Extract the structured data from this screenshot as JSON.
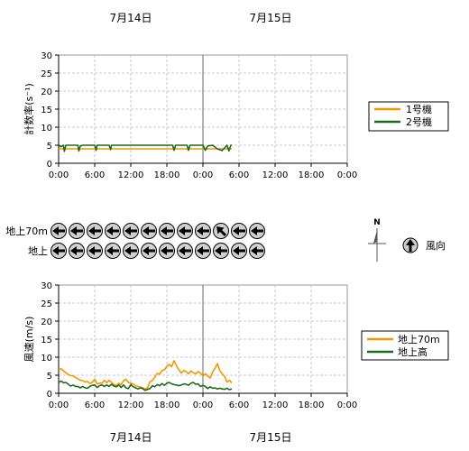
{
  "chart_data": [
    {
      "type": "line",
      "ylabel": "計数率(s⁻¹)",
      "ylim": [
        0,
        30
      ],
      "yticks": [
        "30",
        "25",
        "20",
        "15",
        "10",
        "5",
        "0"
      ],
      "x_hours": [
        0,
        60
      ],
      "xticks": [
        "0:00",
        "6:00",
        "12:00",
        "18:00",
        "0:00",
        "6:00",
        "12:00",
        "18:00",
        "0:00"
      ],
      "dates": [
        "7月14日",
        "7月15日"
      ],
      "grid": true,
      "legend_position": "right",
      "series": [
        {
          "name": "1号機",
          "color": "#f39800",
          "x": [
            0,
            0.5,
            1,
            2,
            3,
            4,
            5,
            6,
            7,
            8,
            9,
            10,
            11,
            12,
            13,
            14,
            15,
            16,
            17,
            18,
            19,
            20,
            21,
            22,
            23,
            24,
            25,
            26,
            27,
            28,
            29,
            30,
            31,
            32,
            33,
            34,
            35,
            36
          ],
          "y": [
            4.0,
            4.0,
            4.0,
            4.0,
            4.0,
            4.0,
            4.0,
            4.0,
            4.0,
            4.0,
            4.0,
            4.0,
            4.0,
            4.0,
            4.0,
            4.0,
            4.0,
            4.0,
            4.0,
            4.0,
            4.0,
            4.0,
            4.0,
            4.0,
            4.0,
            4.0,
            4.0,
            4.0,
            4.0,
            4.0,
            4.0,
            4.0,
            4.0,
            4.0,
            4.0,
            4.0,
            4.0,
            4.0
          ]
        },
        {
          "name": "2号機",
          "color": "#1e6b1e",
          "x": [
            0,
            0.5,
            1,
            1.2,
            1.5,
            2,
            4,
            4.2,
            4.5,
            5,
            7.5,
            7.8,
            8,
            9,
            10.5,
            10.8,
            11,
            12,
            15,
            16,
            18,
            20,
            22,
            23.7,
            24,
            24.3,
            25,
            26,
            26.7,
            27,
            27.3,
            28,
            29,
            30,
            30.5,
            31,
            32,
            33,
            34,
            35,
            35.4,
            35.8,
            36
          ],
          "y": [
            5.0,
            4.6,
            5.0,
            3.3,
            5.0,
            5.0,
            5.0,
            3.4,
            4.8,
            5.0,
            5.0,
            3.6,
            5.0,
            5.0,
            5.0,
            3.8,
            5.0,
            5.0,
            5.0,
            5.0,
            5.0,
            5.0,
            5.0,
            5.0,
            3.6,
            5.0,
            5.0,
            5.0,
            5.0,
            3.6,
            5.0,
            5.0,
            5.0,
            5.0,
            3.6,
            4.8,
            5.0,
            4.0,
            3.5,
            5.0,
            3.4,
            5.0,
            5.0
          ]
        }
      ]
    },
    {
      "type": "line",
      "ylabel": "風速(m/s)",
      "ylim": [
        0,
        30
      ],
      "yticks": [
        "30",
        "25",
        "20",
        "15",
        "10",
        "5",
        "0"
      ],
      "x_hours": [
        0,
        60
      ],
      "xticks": [
        "0:00",
        "6:00",
        "12:00",
        "18:00",
        "0:00",
        "6:00",
        "12:00",
        "18:00",
        "0:00"
      ],
      "dates": [
        "7月14日",
        "7月15日"
      ],
      "grid": true,
      "legend_position": "right",
      "series": [
        {
          "name": "地上70m",
          "color": "#f39800",
          "x": [
            0,
            0.5,
            1,
            1.5,
            2,
            2.5,
            3,
            3.5,
            4,
            4.5,
            5,
            5.5,
            6,
            6.5,
            7,
            7.5,
            8,
            8.5,
            9,
            9.5,
            10,
            10.5,
            11,
            11.5,
            12,
            12.5,
            13,
            13.5,
            14,
            14.5,
            15,
            15.5,
            16,
            16.5,
            17,
            17.5,
            18,
            18.5,
            19,
            19.5,
            20,
            20.5,
            21,
            21.5,
            22,
            22.5,
            23,
            23.5,
            24,
            24.5,
            25,
            25.5,
            26,
            26.5,
            27,
            27.5,
            28,
            28.5,
            29,
            29.5,
            30,
            30.5,
            31,
            31.5,
            32,
            32.5,
            33,
            33.5,
            34,
            34.5,
            35,
            35.5,
            36
          ],
          "y": [
            6.5,
            6.8,
            6.2,
            5.7,
            5.2,
            4.9,
            4.8,
            4.4,
            4.0,
            3.6,
            3.5,
            3.1,
            3.3,
            2.7,
            3.0,
            3.9,
            2.6,
            2.8,
            2.8,
            3.6,
            2.9,
            3.6,
            3.0,
            2.4,
            2.1,
            2.8,
            2.4,
            3.5,
            3.9,
            3.0,
            2.8,
            2.6,
            2.1,
            1.9,
            1.7,
            1.5,
            1.1,
            1.6,
            3.2,
            3.5,
            4.5,
            5.5,
            5.3,
            6.3,
            6.5,
            7.5,
            8.0,
            7.4,
            9.0,
            7.6,
            6.5,
            5.6,
            6.3,
            6.0,
            5.4,
            6.2,
            5.7,
            5.4,
            6.0,
            5.6,
            4.8,
            5.4,
            4.8,
            4.2,
            5.9,
            6.9,
            8.2,
            6.3,
            5.4,
            4.7,
            3.1,
            3.6,
            2.9
          ]
        },
        {
          "name": "地上高",
          "color": "#1e6b1e",
          "x": [
            0,
            0.5,
            1,
            1.5,
            2,
            2.5,
            3,
            3.5,
            4,
            4.5,
            5,
            5.5,
            6,
            6.5,
            7,
            7.5,
            8,
            8.5,
            9,
            9.5,
            10,
            10.5,
            11,
            11.5,
            12,
            12.5,
            13,
            13.5,
            14,
            14.5,
            15,
            15.5,
            16,
            16.5,
            17,
            17.5,
            18,
            18.5,
            19,
            19.5,
            20,
            20.5,
            21,
            21.5,
            22,
            22.5,
            23,
            23.5,
            24,
            24.5,
            25,
            25.5,
            26,
            26.5,
            27,
            27.5,
            28,
            28.5,
            29,
            29.5,
            30,
            30.5,
            31,
            31.5,
            32,
            32.5,
            33,
            33.5,
            34,
            34.5,
            35,
            35.5,
            36
          ],
          "y": [
            3.0,
            3.4,
            2.9,
            3.0,
            2.5,
            2.0,
            2.3,
            1.9,
            1.9,
            1.5,
            1.9,
            1.5,
            1.4,
            1.9,
            2.2,
            2.3,
            1.6,
            2.1,
            2.3,
            1.9,
            2.3,
            1.9,
            2.5,
            2.0,
            1.8,
            2.3,
            1.6,
            2.3,
            1.5,
            1.3,
            2.4,
            1.8,
            1.5,
            1.2,
            1.5,
            1.3,
            0.8,
            1.1,
            1.3,
            2.1,
            1.8,
            2.4,
            2.1,
            2.7,
            2.2,
            2.8,
            3.0,
            2.6,
            2.4,
            2.3,
            2.1,
            2.3,
            2.6,
            2.5,
            2.2,
            2.8,
            3.0,
            2.5,
            2.6,
            1.9,
            2.2,
            1.9,
            1.3,
            1.8,
            1.4,
            1.5,
            1.2,
            1.4,
            1.2,
            1.1,
            1.4,
            1.0,
            1.2
          ]
        }
      ]
    }
  ],
  "wind_direction": {
    "rows": [
      {
        "label": "地上70m",
        "degrees": [
          270,
          270,
          270,
          270,
          270,
          270,
          270,
          270,
          270,
          315,
          270,
          270
        ]
      },
      {
        "label": "地上",
        "degrees": [
          270,
          270,
          270,
          270,
          270,
          270,
          270,
          270,
          270,
          270,
          270,
          270
        ]
      }
    ],
    "north_label": "N",
    "legend_label": "風向"
  }
}
